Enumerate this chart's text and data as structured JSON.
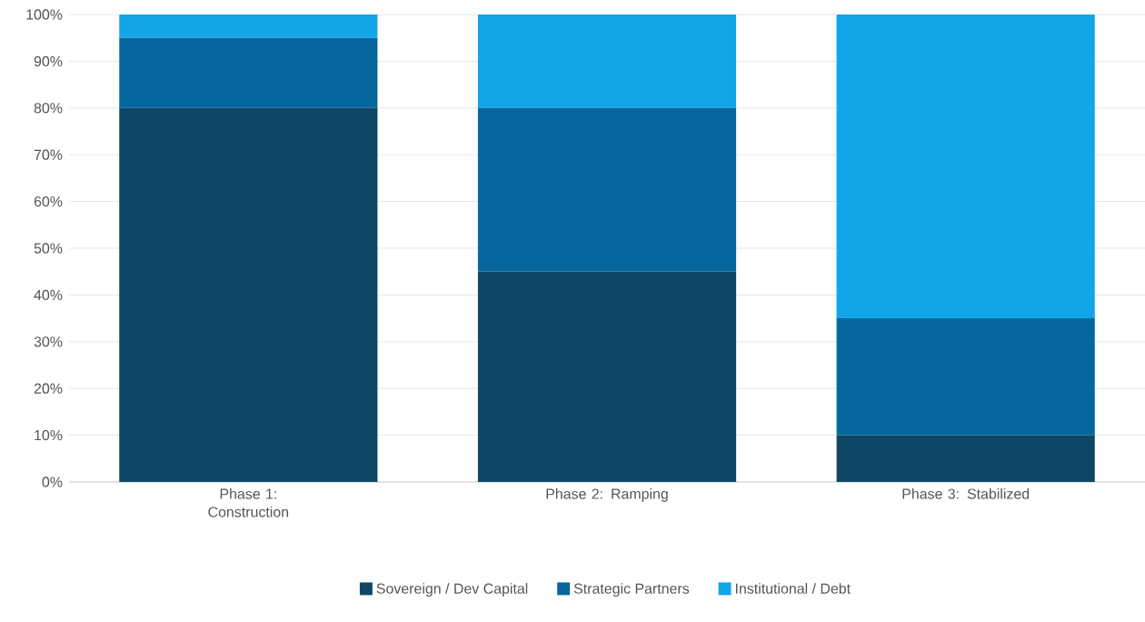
{
  "chart_data": {
    "type": "bar",
    "stacked": true,
    "categories": [
      "Phase 1: Construction",
      "Phase 2: Ramping",
      "Phase 3: Stabilized"
    ],
    "series": [
      {
        "name": "Sovereign / Dev Capital",
        "color": "#0e4766",
        "values": [
          80,
          45,
          10
        ]
      },
      {
        "name": "Strategic Partners",
        "color": "#05679e",
        "values": [
          15,
          35,
          25
        ]
      },
      {
        "name": "Institutional / Debt",
        "color": "#12a5e8",
        "values": [
          5,
          20,
          65
        ]
      }
    ],
    "ylim": [
      0,
      100
    ],
    "yticks": [
      {
        "value": 0,
        "label": "0%"
      },
      {
        "value": 10,
        "label": "10%"
      },
      {
        "value": 20,
        "label": "20%"
      },
      {
        "value": 30,
        "label": "30%"
      },
      {
        "value": 40,
        "label": "40%"
      },
      {
        "value": 50,
        "label": "50%"
      },
      {
        "value": 60,
        "label": "60%"
      },
      {
        "value": 70,
        "label": "70%"
      },
      {
        "value": 80,
        "label": "80%"
      },
      {
        "value": 90,
        "label": "90%"
      },
      {
        "value": 100,
        "label": "100%"
      }
    ],
    "grid": "y",
    "legend": "bottom"
  }
}
